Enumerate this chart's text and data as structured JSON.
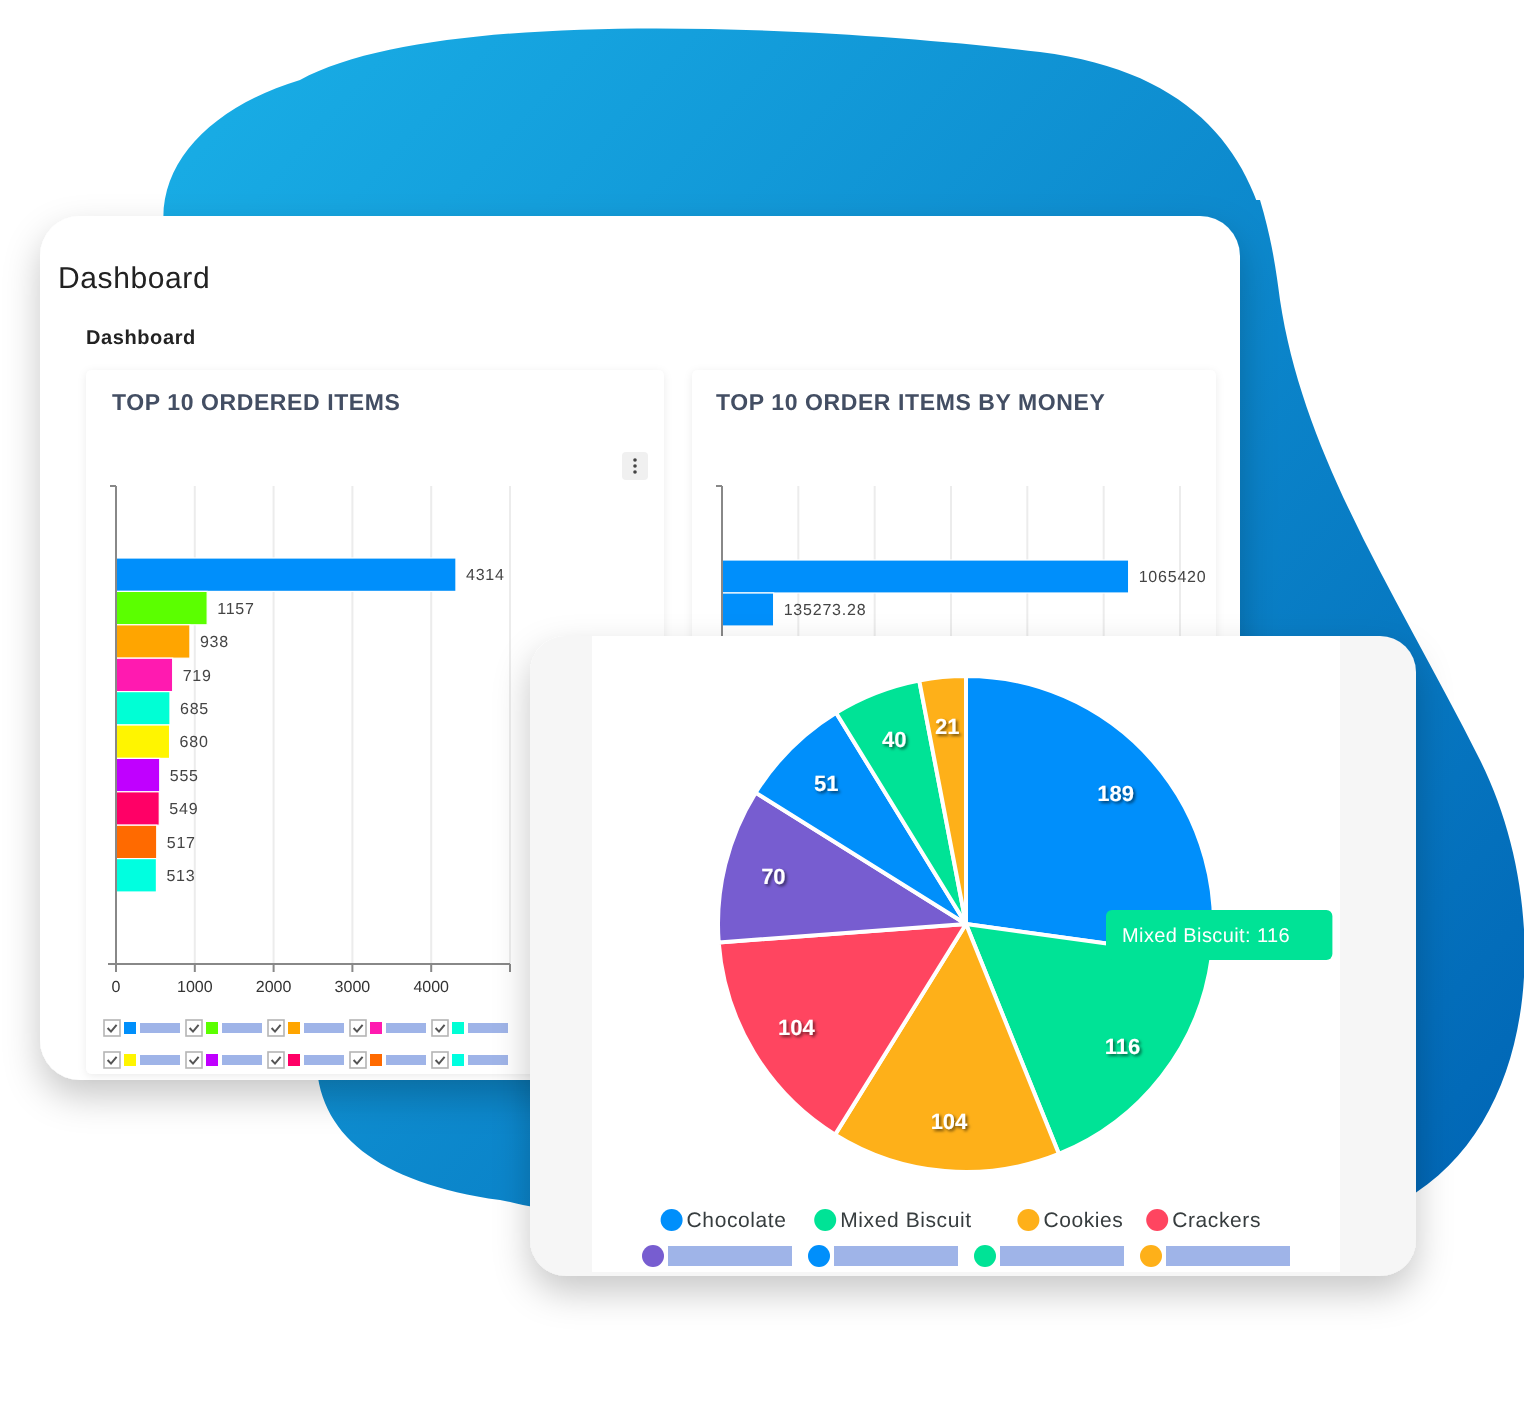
{
  "chart_data": [
    {
      "type": "bar",
      "orientation": "horizontal",
      "title": "TOP 10 ORDERED ITEMS",
      "annotations": [
        "Dashboard",
        "Dashboard"
      ],
      "categories": [
        null,
        null,
        null,
        null,
        null,
        null,
        null,
        null,
        null,
        null
      ],
      "values": [
        4314,
        1157,
        938,
        719,
        685,
        680,
        555,
        549,
        517,
        513
      ],
      "colors": [
        "#008ffb",
        "#5bff00",
        "#ffa500",
        "#ff1ab0",
        "#00ffd5",
        "#fff500",
        "#c000ff",
        "#ff0066",
        "#ff6a00",
        "#00ffe0"
      ],
      "xlim": [
        0,
        5000
      ],
      "xticks": [
        0,
        1000,
        2000,
        3000,
        4000,
        {
          "value": 5000,
          "label": null
        }
      ],
      "grid": "x",
      "data_labels": true,
      "tick_labels": "x"
    },
    {
      "type": "bar",
      "orientation": "horizontal",
      "title": "TOP 10 ORDER ITEMS BY MONEY",
      "categories": [
        null,
        null
      ],
      "values": [
        1065420,
        135273.28
      ],
      "color": "#008ffb",
      "xlim": [
        0,
        1200000
      ],
      "xticks": [
        {
          "value": 0,
          "label": null
        },
        {
          "value": 200000,
          "label": null
        },
        {
          "value": 400000,
          "label": null
        },
        {
          "value": 600000,
          "label": null
        },
        {
          "value": 800000,
          "label": null
        },
        {
          "value": 1000000,
          "label": null
        },
        {
          "value": 1200000,
          "label": null
        }
      ],
      "grid": "x",
      "data_labels": true,
      "tick_labels": false
    },
    {
      "type": "pie",
      "categories": [
        "Chocolate",
        "Mixed Biscuit",
        "Cookies",
        "Crackers",
        null,
        null,
        null,
        null
      ],
      "values": [
        189,
        116,
        104,
        104,
        70,
        51,
        40,
        21
      ],
      "colors": [
        "#008ffb",
        "#00e396",
        "#feb019",
        "#ff4560",
        "#775dd0",
        "#008ffb",
        "#00e396",
        "#feb019"
      ],
      "data_labels": true,
      "legend": "bottom",
      "annotations": [
        {
          "text": "Mixed Biscuit: 116",
          "x": "Mixed Biscuit"
        }
      ]
    }
  ]
}
